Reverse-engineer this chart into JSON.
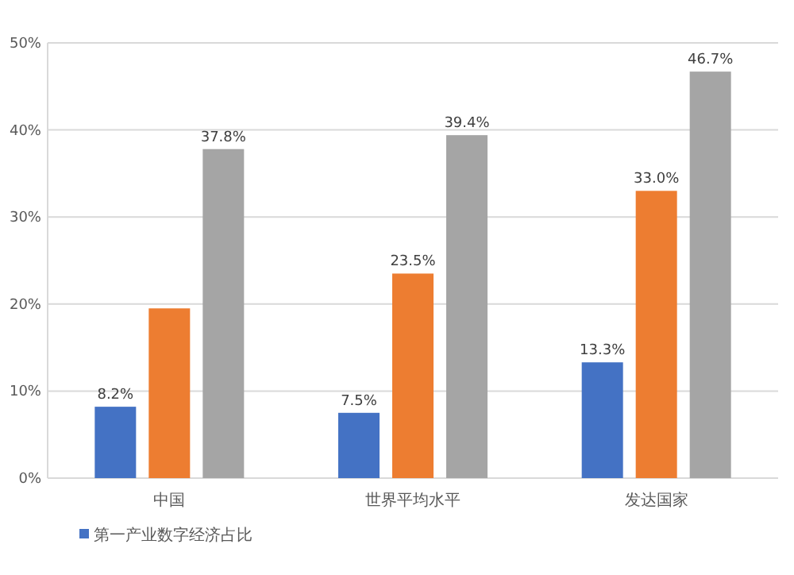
{
  "chart_data": {
    "type": "bar",
    "categories": [
      "中国",
      "世界平均水平",
      "发达国家"
    ],
    "series": [
      {
        "name": "第一产业数字经济占比",
        "color": "#4472c4",
        "values": [
          8.2,
          7.5,
          13.3
        ],
        "value_labels": [
          "8.2%",
          "7.5%",
          "13.3%"
        ]
      },
      {
        "color": "#ed7d31",
        "values": [
          19.5,
          23.5,
          33.0
        ],
        "value_labels": [
          null,
          "23.5%",
          "33.0%"
        ]
      },
      {
        "color": "#a5a5a5",
        "values": [
          37.8,
          39.4,
          46.7
        ],
        "value_labels": [
          "37.8%",
          "39.4%",
          "46.7%"
        ]
      }
    ],
    "ylim": [
      0,
      50
    ],
    "yticks": [
      {
        "value": 0,
        "label": "0%"
      },
      {
        "value": 10,
        "label": "10%"
      },
      {
        "value": 20,
        "label": "20%"
      },
      {
        "value": 30,
        "label": "30%"
      },
      {
        "value": 40,
        "label": "40%"
      },
      {
        "value": 50,
        "label": "50%"
      }
    ],
    "grid": "y",
    "legend": "bottom"
  }
}
